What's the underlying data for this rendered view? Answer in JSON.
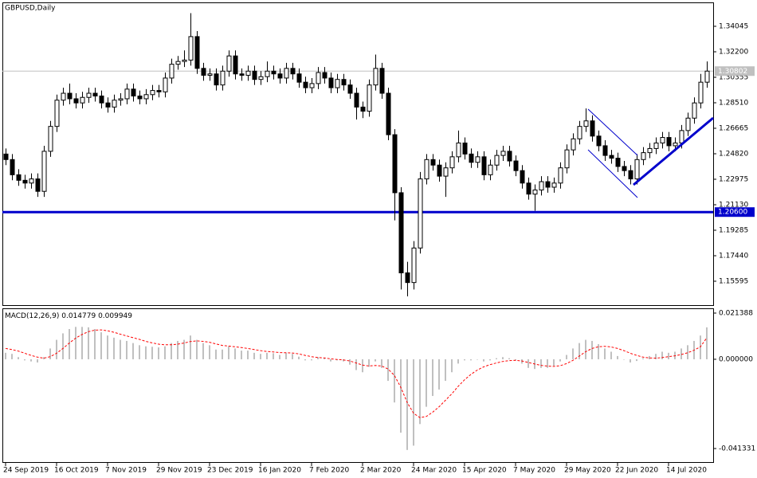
{
  "chart_data": [
    {
      "type": "candlestick",
      "title": "GBPUSD,Daily",
      "open": [
        1.248,
        1.244,
        1.233,
        1.229,
        1.227,
        1.23,
        1.221,
        1.25,
        1.268,
        1.287,
        1.292,
        1.288,
        1.285,
        1.289,
        1.292,
        1.29,
        1.285,
        1.282,
        1.287,
        1.288,
        1.295,
        1.29,
        1.288,
        1.291,
        1.294,
        1.293,
        1.303,
        1.313,
        1.315,
        1.316,
        1.333,
        1.31,
        1.305,
        1.306,
        1.298,
        1.308,
        1.319,
        1.306,
        1.305,
        1.308,
        1.302,
        1.304,
        1.308,
        1.306,
        1.303,
        1.31,
        1.306,
        1.3,
        1.296,
        1.299,
        1.307,
        1.303,
        1.296,
        1.302,
        1.298,
        1.292,
        1.282,
        1.279,
        1.298,
        1.31,
        1.292,
        1.262,
        1.22,
        1.162,
        1.155,
        1.18,
        1.23,
        1.244,
        1.24,
        1.232,
        1.238,
        1.246,
        1.256,
        1.248,
        1.242,
        1.246,
        1.233,
        1.24,
        1.247,
        1.25,
        1.243,
        1.236,
        1.227,
        1.219,
        1.222,
        1.228,
        1.224,
        1.227,
        1.238,
        1.251,
        1.259,
        1.268,
        1.272,
        1.261,
        1.254,
        1.247,
        1.245,
        1.239,
        1.236,
        1.23,
        1.244,
        1.249,
        1.252,
        1.256,
        1.26,
        1.254,
        1.256,
        1.265,
        1.274,
        1.285,
        1.3
      ],
      "high": [
        1.252,
        1.248,
        1.237,
        1.233,
        1.234,
        1.234,
        1.254,
        1.272,
        1.291,
        1.296,
        1.299,
        1.292,
        1.293,
        1.296,
        1.296,
        1.294,
        1.289,
        1.291,
        1.292,
        1.299,
        1.299,
        1.294,
        1.295,
        1.298,
        1.298,
        1.307,
        1.317,
        1.319,
        1.323,
        1.35,
        1.337,
        1.314,
        1.31,
        1.31,
        1.312,
        1.323,
        1.323,
        1.31,
        1.312,
        1.312,
        1.308,
        1.315,
        1.312,
        1.31,
        1.314,
        1.314,
        1.31,
        1.304,
        1.303,
        1.311,
        1.311,
        1.307,
        1.306,
        1.306,
        1.302,
        1.296,
        1.286,
        1.302,
        1.32,
        1.314,
        1.296,
        1.266,
        1.224,
        1.17,
        1.185,
        1.235,
        1.248,
        1.248,
        1.244,
        1.242,
        1.25,
        1.265,
        1.26,
        1.252,
        1.25,
        1.25,
        1.244,
        1.251,
        1.254,
        1.254,
        1.247,
        1.24,
        1.231,
        1.226,
        1.232,
        1.232,
        1.231,
        1.242,
        1.255,
        1.263,
        1.272,
        1.281,
        1.276,
        1.265,
        1.258,
        1.251,
        1.249,
        1.243,
        1.24,
        1.248,
        1.253,
        1.256,
        1.26,
        1.264,
        1.264,
        1.26,
        1.269,
        1.278,
        1.289,
        1.306,
        1.315
      ],
      "low": [
        1.24,
        1.229,
        1.225,
        1.223,
        1.223,
        1.217,
        1.217,
        1.246,
        1.264,
        1.283,
        1.284,
        1.281,
        1.281,
        1.285,
        1.286,
        1.281,
        1.278,
        1.278,
        1.283,
        1.284,
        1.286,
        1.284,
        1.284,
        1.287,
        1.289,
        1.289,
        1.299,
        1.309,
        1.311,
        1.312,
        1.306,
        1.301,
        1.301,
        1.294,
        1.294,
        1.304,
        1.302,
        1.301,
        1.301,
        1.298,
        1.298,
        1.3,
        1.302,
        1.299,
        1.299,
        1.302,
        1.296,
        1.292,
        1.292,
        1.295,
        1.299,
        1.292,
        1.292,
        1.294,
        1.288,
        1.273,
        1.274,
        1.275,
        1.294,
        1.288,
        1.258,
        1.2,
        1.15,
        1.145,
        1.15,
        1.176,
        1.226,
        1.236,
        1.228,
        1.217,
        1.234,
        1.242,
        1.244,
        1.238,
        1.238,
        1.229,
        1.229,
        1.236,
        1.243,
        1.239,
        1.232,
        1.223,
        1.215,
        1.207,
        1.218,
        1.22,
        1.22,
        1.223,
        1.234,
        1.247,
        1.255,
        1.264,
        1.257,
        1.25,
        1.243,
        1.241,
        1.235,
        1.232,
        1.226,
        1.226,
        1.24,
        1.245,
        1.248,
        1.252,
        1.25,
        1.25,
        1.252,
        1.261,
        1.27,
        1.281,
        1.296
      ],
      "close": [
        1.244,
        1.233,
        1.229,
        1.227,
        1.23,
        1.221,
        1.25,
        1.268,
        1.287,
        1.292,
        1.288,
        1.285,
        1.289,
        1.292,
        1.29,
        1.285,
        1.282,
        1.287,
        1.288,
        1.295,
        1.29,
        1.288,
        1.291,
        1.294,
        1.293,
        1.303,
        1.313,
        1.315,
        1.316,
        1.333,
        1.31,
        1.305,
        1.306,
        1.298,
        1.308,
        1.319,
        1.306,
        1.305,
        1.308,
        1.302,
        1.304,
        1.308,
        1.306,
        1.303,
        1.31,
        1.306,
        1.3,
        1.296,
        1.299,
        1.307,
        1.303,
        1.296,
        1.302,
        1.298,
        1.292,
        1.282,
        1.279,
        1.298,
        1.31,
        1.292,
        1.262,
        1.22,
        1.162,
        1.155,
        1.18,
        1.23,
        1.244,
        1.24,
        1.232,
        1.238,
        1.246,
        1.256,
        1.248,
        1.242,
        1.246,
        1.233,
        1.24,
        1.247,
        1.25,
        1.243,
        1.236,
        1.227,
        1.219,
        1.222,
        1.228,
        1.224,
        1.227,
        1.238,
        1.251,
        1.259,
        1.268,
        1.272,
        1.261,
        1.254,
        1.247,
        1.245,
        1.239,
        1.236,
        1.23,
        1.244,
        1.249,
        1.252,
        1.256,
        1.26,
        1.254,
        1.256,
        1.265,
        1.274,
        1.285,
        1.3,
        1.30802
      ],
      "colors": {
        "up": "#ffffff",
        "down": "#000000",
        "outline": "#000000",
        "last": "#c0c0c0"
      },
      "xlim": [
        -0.5,
        111
      ],
      "ylim": [
        1.13866,
        1.35775
      ],
      "yticks": [
        1.34045,
        {
          "value": 1.322,
          "label": "1.32200"
        },
        1.30355,
        {
          "value": 1.2851,
          "label": "1.28510"
        },
        1.26665,
        {
          "value": 1.2482,
          "label": "1.24820"
        },
        1.22975,
        {
          "value": 1.2113,
          "label": "1.21130"
        },
        1.19285,
        {
          "value": 1.1744,
          "label": "1.17440"
        },
        1.15595
      ],
      "levels": [
        {
          "value": 1.206,
          "label": "1.20600",
          "color": "#0000cc"
        }
      ]
    },
    {
      "type": "macd",
      "title": "MACD(12,26,9)",
      "series": [
        {
          "color": "#c0c0c0",
          "style": "histogram",
          "values": [
            0.003,
            0.0025,
            0.001,
            -0.0005,
            -0.001,
            -0.0015,
            0.001,
            0.005,
            0.009,
            0.012,
            0.014,
            0.015,
            0.015,
            0.0148,
            0.014,
            0.0125,
            0.011,
            0.01,
            0.009,
            0.0085,
            0.0075,
            0.0065,
            0.006,
            0.0058,
            0.0055,
            0.006,
            0.0075,
            0.0085,
            0.009,
            0.011,
            0.009,
            0.0075,
            0.0065,
            0.0045,
            0.0045,
            0.006,
            0.005,
            0.004,
            0.004,
            0.003,
            0.0025,
            0.003,
            0.0028,
            0.002,
            0.003,
            0.0025,
            0.0012,
            -0.0005,
            -0.0005,
            0.001,
            0.0005,
            -0.001,
            -0.0005,
            -0.001,
            -0.0025,
            -0.005,
            -0.006,
            -0.0035,
            -0.001,
            -0.004,
            -0.01,
            -0.02,
            -0.034,
            -0.042,
            -0.04,
            -0.03,
            -0.022,
            -0.017,
            -0.014,
            -0.01,
            -0.006,
            -0.002,
            -0.0005,
            -0.0005,
            0.0,
            -0.001,
            -0.0005,
            0.0005,
            0.001,
            0.0005,
            -0.0005,
            -0.002,
            -0.004,
            -0.0045,
            -0.004,
            -0.004,
            -0.003,
            -0.001,
            0.002,
            0.005,
            0.0075,
            0.009,
            0.0085,
            0.007,
            0.005,
            0.0035,
            0.0015,
            0.0,
            -0.0015,
            -0.0008,
            0.0005,
            0.0015,
            0.0025,
            0.0035,
            0.003,
            0.0035,
            0.005,
            0.0065,
            0.0085,
            0.011,
            0.014779
          ]
        },
        {
          "color": "#ff0000",
          "style": "dashed-line",
          "values": [
            0.005,
            0.0045,
            0.0038,
            0.0028,
            0.0018,
            0.001,
            0.0005,
            0.0012,
            0.0028,
            0.005,
            0.0075,
            0.0098,
            0.0115,
            0.0128,
            0.0135,
            0.0136,
            0.0132,
            0.0125,
            0.0116,
            0.0108,
            0.01,
            0.0092,
            0.0083,
            0.0076,
            0.007,
            0.0067,
            0.0067,
            0.007,
            0.0075,
            0.0082,
            0.0085,
            0.0083,
            0.0079,
            0.0071,
            0.0064,
            0.0061,
            0.0058,
            0.0054,
            0.005,
            0.0045,
            0.004,
            0.0036,
            0.0034,
            0.0031,
            0.003,
            0.0029,
            0.0025,
            0.0018,
            0.0012,
            0.0008,
            0.0006,
            0.0002,
            -0.0001,
            -0.0003,
            -0.0008,
            -0.0017,
            -0.0027,
            -0.0031,
            -0.0029,
            -0.0031,
            -0.0045,
            -0.0075,
            -0.013,
            -0.02,
            -0.025,
            -0.027,
            -0.0265,
            -0.0245,
            -0.022,
            -0.019,
            -0.016,
            -0.0125,
            -0.0095,
            -0.007,
            -0.005,
            -0.0035,
            -0.0025,
            -0.0017,
            -0.001,
            -0.0006,
            -0.0005,
            -0.0008,
            -0.0015,
            -0.0022,
            -0.0028,
            -0.0032,
            -0.0033,
            -0.003,
            -0.002,
            -0.0005,
            0.0015,
            0.0035,
            0.005,
            0.0058,
            0.006,
            0.0057,
            0.005,
            0.004,
            0.0028,
            0.0018,
            0.001,
            0.0006,
            0.0005,
            0.0008,
            0.0012,
            0.0016,
            0.0022,
            0.003,
            0.0042,
            0.0058,
            0.009949
          ]
        }
      ],
      "xlim": [
        -0.5,
        111
      ],
      "ylim": [
        -0.0476,
        0.0236
      ],
      "yticks": [
        0.021388,
        {
          "value": 0,
          "label": "0.000000"
        },
        -0.041331
      ],
      "xticks": [
        {
          "value": 0,
          "label": "24 Sep 2019"
        },
        {
          "value": 8,
          "label": "16 Oct 2019"
        },
        {
          "value": 16,
          "label": "7 Nov 2019"
        },
        {
          "value": 24,
          "label": "29 Nov 2019"
        },
        {
          "value": 32,
          "label": "23 Dec 2019"
        },
        {
          "value": 40,
          "label": "16 Jan 2020"
        },
        {
          "value": 48,
          "label": "7 Feb 2020"
        },
        {
          "value": 56,
          "label": "2 Mar 2020"
        },
        {
          "value": 64,
          "label": "24 Mar 2020"
        },
        {
          "value": 72,
          "label": "15 Apr 2020"
        },
        {
          "value": 80,
          "label": "7 May 2020"
        },
        {
          "value": 88,
          "label": "29 May 2020"
        },
        {
          "value": 96,
          "label": "22 Jun 2020"
        },
        {
          "value": 104,
          "label": "14 Jul 2020"
        }
      ]
    }
  ]
}
